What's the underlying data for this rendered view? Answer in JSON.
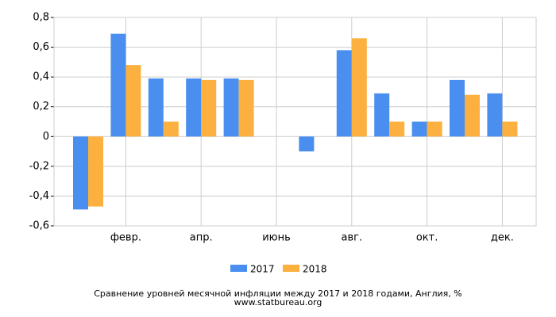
{
  "chart_data": {
    "type": "bar",
    "title": "Сравнение уровней месячной инфляции между 2017 и 2018 годами, Англия, %",
    "subtitle": "www.statbureau.org",
    "categories": [
      null,
      "февр.",
      null,
      "апр.",
      null,
      "июнь",
      null,
      "авг.",
      null,
      "окт.",
      null,
      "дек."
    ],
    "series": [
      {
        "name": "2017",
        "color": "#4a8ff0",
        "values": [
          -0.49,
          0.69,
          0.39,
          0.39,
          0.39,
          0,
          -0.1,
          0.58,
          0.29,
          0.1,
          0.38,
          0.29
        ]
      },
      {
        "name": "2018",
        "color": "#fbb040",
        "values": [
          -0.47,
          0.48,
          0.1,
          0.38,
          0.38,
          0,
          0,
          0.66,
          0.1,
          0.1,
          0.28,
          0.1
        ]
      }
    ],
    "ylim": [
      -0.6,
      0.8
    ],
    "yticks": [
      {
        "value": -0.6,
        "label": "-0,6"
      },
      {
        "value": -0.4,
        "label": "-0,4"
      },
      {
        "value": -0.2,
        "label": "-0,2"
      },
      0,
      {
        "value": 0.2,
        "label": "0,2"
      },
      {
        "value": 0.4,
        "label": "0,4"
      },
      {
        "value": 0.6,
        "label": "0,6"
      },
      {
        "value": 0.8,
        "label": "0,8"
      }
    ],
    "grid": true
  }
}
